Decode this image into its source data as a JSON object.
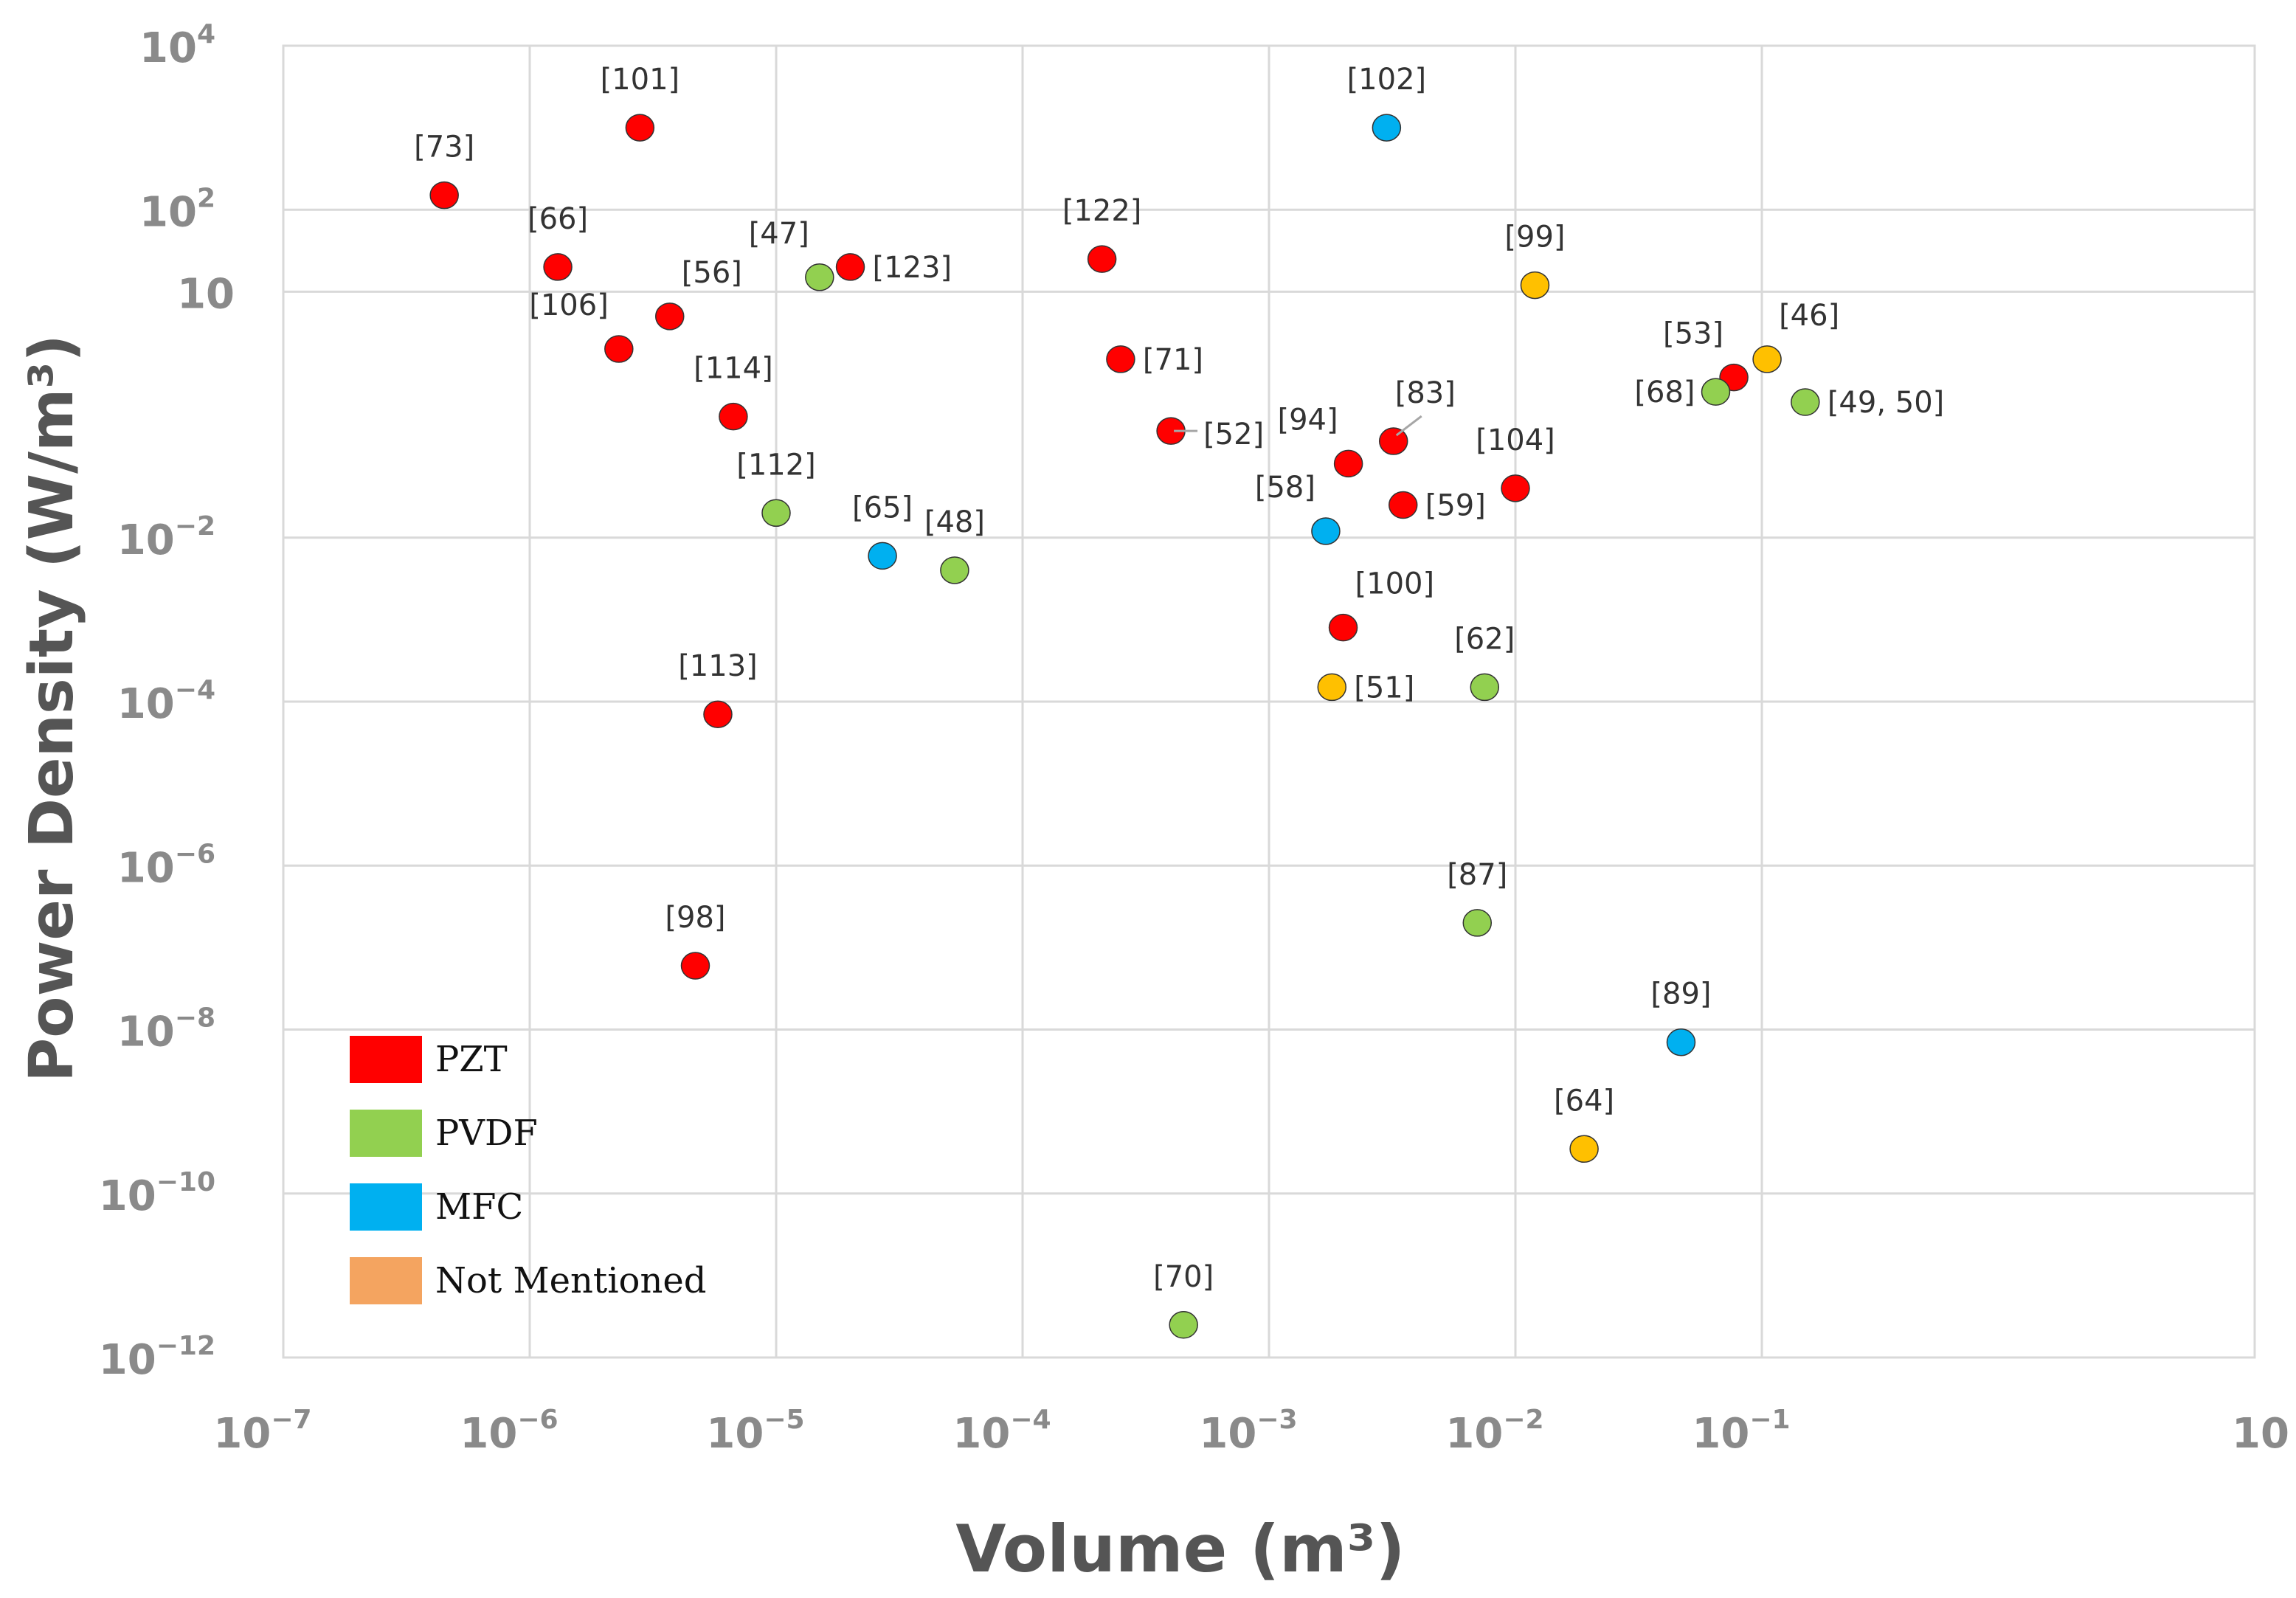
{
  "chart_data": {
    "type": "scatter",
    "title": "",
    "xlabel": "Volume (m³)",
    "ylabel": "Power Density (W/m³)",
    "xscale": "log",
    "yscale": "log",
    "xlim": [
      1e-07,
      10
    ],
    "ylim": [
      1e-12,
      10000
    ],
    "grid": true,
    "legend_position": "bottom-left",
    "x_ticks": [
      {
        "value": 1e-07,
        "base": "10",
        "exp": "−7"
      },
      {
        "value": 1e-06,
        "base": "10",
        "exp": "−6"
      },
      {
        "value": 1e-05,
        "base": "10",
        "exp": "−5"
      },
      {
        "value": 0.0001,
        "base": "10",
        "exp": "−4"
      },
      {
        "value": 0.001,
        "base": "10",
        "exp": "−3"
      },
      {
        "value": 0.01,
        "base": "10",
        "exp": "−2"
      },
      {
        "value": 0.1,
        "base": "10",
        "exp": "−1"
      },
      {
        "value": 10,
        "base": "10",
        "exp": ""
      }
    ],
    "y_ticks": [
      {
        "value": 10000,
        "base": "10",
        "exp": "4"
      },
      {
        "value": 100,
        "base": "10",
        "exp": "2"
      },
      {
        "value": 10,
        "base": "10",
        "exp": ""
      },
      {
        "value": 0.01,
        "base": "10",
        "exp": "−2"
      },
      {
        "value": 0.0001,
        "base": "10",
        "exp": "−4"
      },
      {
        "value": 1e-06,
        "base": "10",
        "exp": "−6"
      },
      {
        "value": 1e-08,
        "base": "10",
        "exp": "−8"
      },
      {
        "value": 1e-10,
        "base": "10",
        "exp": "−10"
      },
      {
        "value": 1e-12,
        "base": "10",
        "exp": "−12"
      }
    ],
    "categories": [
      {
        "key": "PZT",
        "name": "PZT",
        "color": "#ff0000",
        "legend_color": "#ff0000"
      },
      {
        "key": "PVDF",
        "name": "PVDF",
        "color": "#92d050",
        "legend_color": "#92d050"
      },
      {
        "key": "MFC",
        "name": "MFC",
        "color": "#00b0f0",
        "legend_color": "#00b0f0"
      },
      {
        "key": "NM",
        "name": "Not Mentioned",
        "color": "#ffc000",
        "legend_color": "#f4a460"
      }
    ],
    "points": [
      {
        "label": "[73]",
        "x": 4.5e-07,
        "y": 150,
        "cat": "PZT",
        "lpos": "above"
      },
      {
        "label": "[101]",
        "x": 2.8e-06,
        "y": 1000,
        "cat": "PZT",
        "lpos": "above"
      },
      {
        "label": "[66]",
        "x": 1.3e-06,
        "y": 20,
        "cat": "PZT",
        "lpos": "above"
      },
      {
        "label": "[56]",
        "x": 3.7e-06,
        "y": 5,
        "cat": "PZT",
        "lpos": "above-right"
      },
      {
        "label": "[106]",
        "x": 2.3e-06,
        "y": 2,
        "cat": "PZT",
        "lpos": "above-left"
      },
      {
        "label": "[114]",
        "x": 6.7e-06,
        "y": 0.3,
        "cat": "PZT",
        "lpos": "above"
      },
      {
        "label": "[47]",
        "x": 1.5e-05,
        "y": 15,
        "cat": "PVDF",
        "lpos": "above-left"
      },
      {
        "label": "[123]",
        "x": 2e-05,
        "y": 20,
        "cat": "PZT",
        "lpos": "right"
      },
      {
        "label": "[112]",
        "x": 1e-05,
        "y": 0.02,
        "cat": "PVDF",
        "lpos": "above"
      },
      {
        "label": "[65]",
        "x": 2.7e-05,
        "y": 0.006,
        "cat": "MFC",
        "lpos": "above"
      },
      {
        "label": "[48]",
        "x": 5.3e-05,
        "y": 0.004,
        "cat": "PVDF",
        "lpos": "above"
      },
      {
        "label": "[113]",
        "x": 5.8e-06,
        "y": 7e-05,
        "cat": "PZT",
        "lpos": "above"
      },
      {
        "label": "[98]",
        "x": 4.7e-06,
        "y": 6e-08,
        "cat": "PZT",
        "lpos": "above"
      },
      {
        "label": "[122]",
        "x": 0.00021,
        "y": 25,
        "cat": "PZT",
        "lpos": "above"
      },
      {
        "label": "[71]",
        "x": 0.00025,
        "y": 1.5,
        "cat": "PZT",
        "lpos": "right"
      },
      {
        "label": "[52]",
        "x": 0.0004,
        "y": 0.2,
        "cat": "PZT",
        "lpos": "right-line"
      },
      {
        "label": "[102]",
        "x": 0.003,
        "y": 1000,
        "cat": "MFC",
        "lpos": "above"
      },
      {
        "label": "[99]",
        "x": 0.012,
        "y": 12,
        "cat": "NM",
        "lpos": "above"
      },
      {
        "label": "[94]",
        "x": 0.0021,
        "y": 0.08,
        "cat": "PZT",
        "lpos": "above-left"
      },
      {
        "label": "[83]",
        "x": 0.0032,
        "y": 0.15,
        "cat": "PZT",
        "lpos": "above-right-line"
      },
      {
        "label": "[58]",
        "x": 0.0017,
        "y": 0.012,
        "cat": "MFC",
        "lpos": "above-left"
      },
      {
        "label": "[59]",
        "x": 0.0035,
        "y": 0.025,
        "cat": "PZT",
        "lpos": "right"
      },
      {
        "label": "[104]",
        "x": 0.01,
        "y": 0.04,
        "cat": "PZT",
        "lpos": "above"
      },
      {
        "label": "[100]",
        "x": 0.002,
        "y": 0.0008,
        "cat": "PZT",
        "lpos": "above-right"
      },
      {
        "label": "[51]",
        "x": 0.0018,
        "y": 0.00015,
        "cat": "NM",
        "lpos": "right"
      },
      {
        "label": "[62]",
        "x": 0.0075,
        "y": 0.00015,
        "cat": "PVDF",
        "lpos": "above"
      },
      {
        "label": "[87]",
        "x": 0.007,
        "y": 2e-07,
        "cat": "PVDF",
        "lpos": "above"
      },
      {
        "label": "[89]",
        "x": 0.047,
        "y": 7e-09,
        "cat": "MFC",
        "lpos": "above"
      },
      {
        "label": "[64]",
        "x": 0.019,
        "y": 3.5e-10,
        "cat": "NM",
        "lpos": "above"
      },
      {
        "label": "[53]",
        "x": 0.077,
        "y": 0.9,
        "cat": "PZT",
        "lpos": "above-left"
      },
      {
        "label": "[68]",
        "x": 0.065,
        "y": 0.6,
        "cat": "PVDF",
        "lpos": "left"
      },
      {
        "label": "[46]",
        "x": 0.105,
        "y": 1.5,
        "cat": "NM",
        "lpos": "above-right"
      },
      {
        "label": "[49, 50]",
        "x": 0.15,
        "y": 0.45,
        "cat": "PVDF",
        "lpos": "right"
      },
      {
        "label": "[70]",
        "x": 0.00045,
        "y": 2.5e-12,
        "cat": "PVDF",
        "lpos": "above"
      }
    ]
  }
}
